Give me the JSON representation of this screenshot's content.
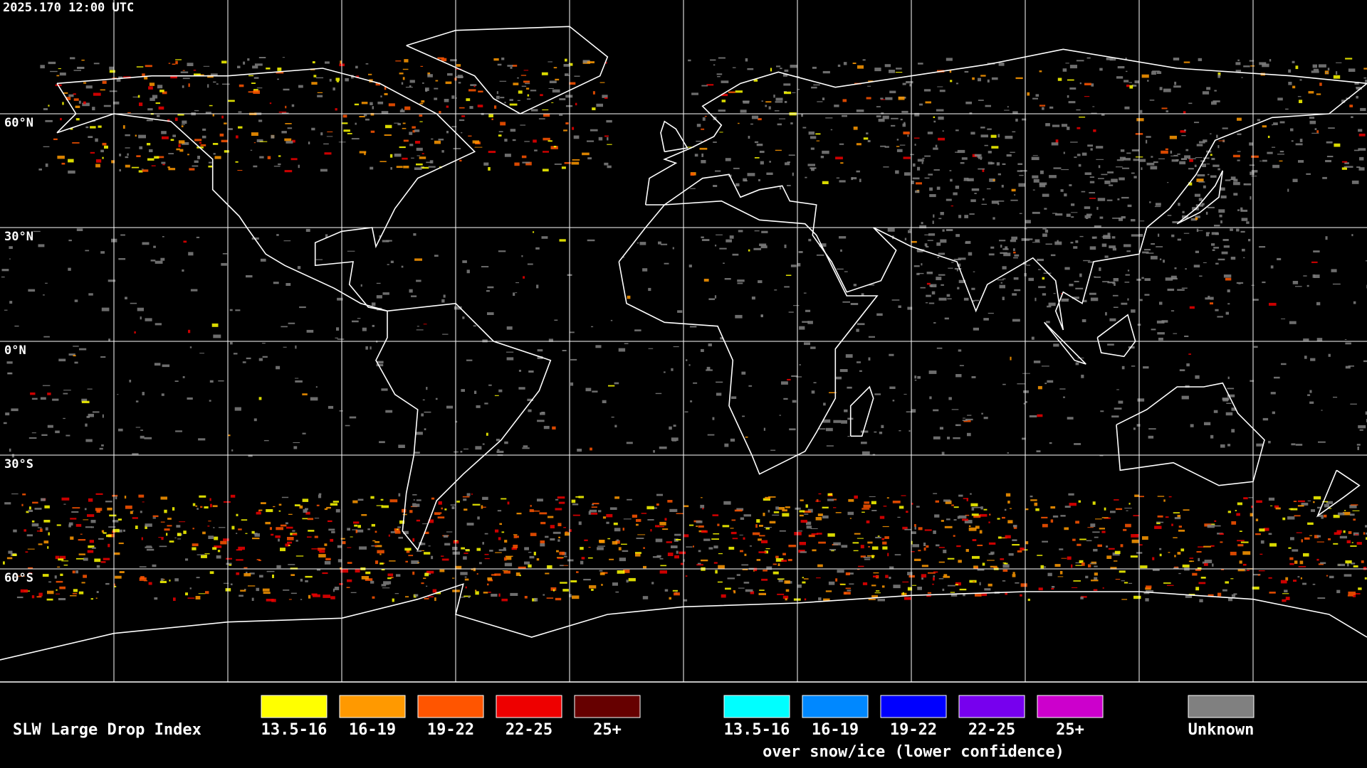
{
  "header": {
    "timestamp": "2025.170 12:00 UTC"
  },
  "map": {
    "latitude_labels": [
      "60°N",
      "30°N",
      "0°N",
      "30°S",
      "60°S"
    ]
  },
  "legend": {
    "title": "SLW Large Drop Index",
    "groups": [
      {
        "items": [
          {
            "label": "13.5-16",
            "color": "#ffff00"
          },
          {
            "label": "16-19",
            "color": "#ff9900"
          },
          {
            "label": "19-22",
            "color": "#ff5500"
          },
          {
            "label": "22-25",
            "color": "#ee0000"
          },
          {
            "label": "25+",
            "color": "#660000"
          }
        ]
      },
      {
        "items": [
          {
            "label": "13.5-16",
            "color": "#00ffff"
          },
          {
            "label": "16-19",
            "color": "#0088ff"
          },
          {
            "label": "19-22",
            "color": "#0000ff"
          },
          {
            "label": "22-25",
            "color": "#7700ee"
          },
          {
            "label": "25+",
            "color": "#cc00cc"
          }
        ],
        "caption": "over snow/ice (lower confidence)"
      }
    ],
    "unknown": {
      "label": "Unknown",
      "color": "#808080"
    }
  }
}
